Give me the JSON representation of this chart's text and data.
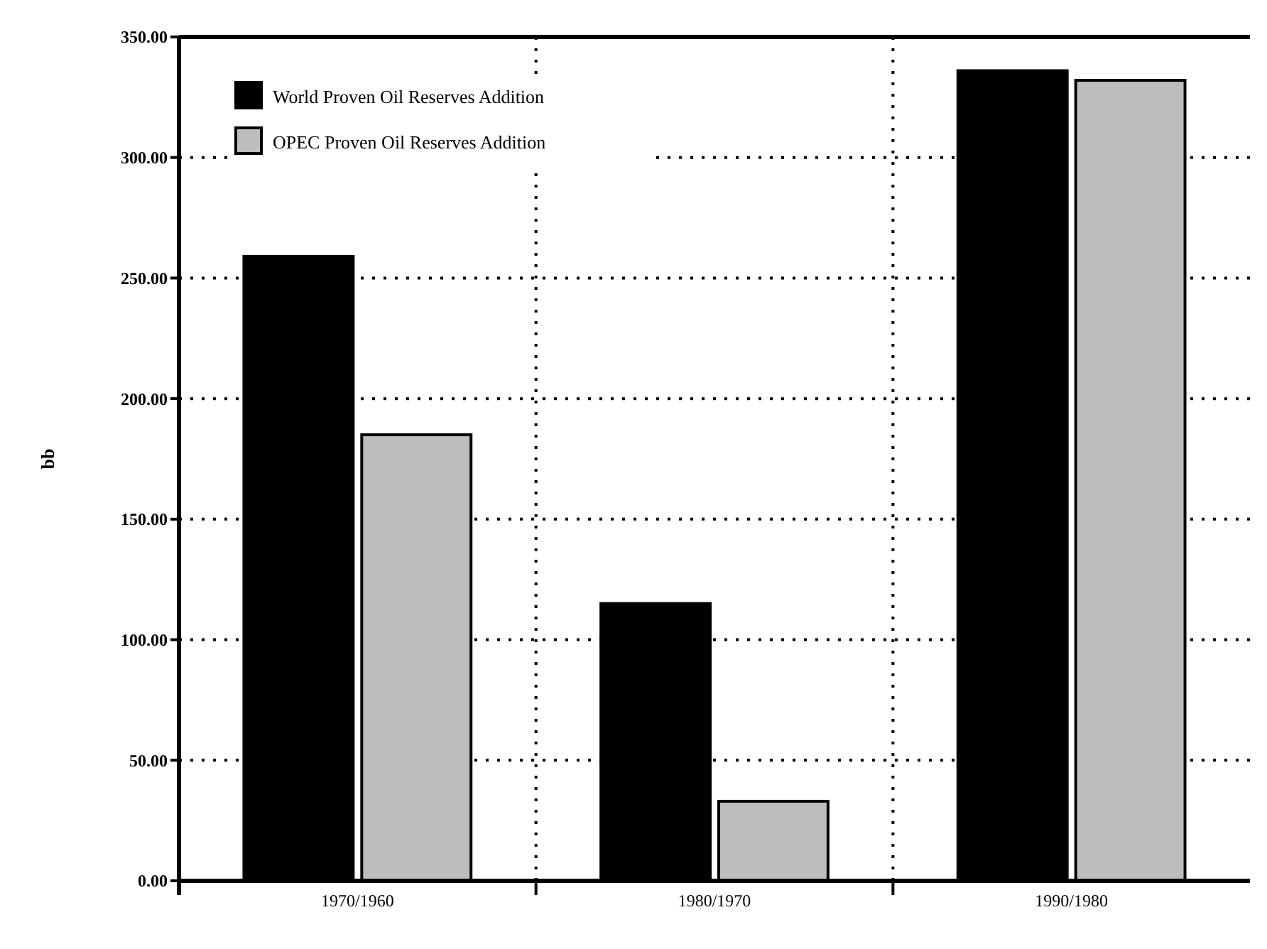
{
  "chart_data": {
    "type": "bar",
    "ylabel": "bb",
    "categories": [
      "1970/1960",
      "1980/1970",
      "1990/1980"
    ],
    "series": [
      {
        "name": "World Proven Oil Reserves Addition",
        "color": "#000000",
        "values": [
          259,
          115,
          336
        ]
      },
      {
        "name": "OPEC Proven Oil Reserves Addition",
        "color": "#bdbdbd",
        "values": [
          185,
          33,
          332
        ]
      }
    ],
    "ylim": [
      0,
      350
    ],
    "yticks": [
      {
        "value": 0,
        "label": "0.00"
      },
      {
        "value": 50,
        "label": "50.00"
      },
      {
        "value": 100,
        "label": "100.00"
      },
      {
        "value": 150,
        "label": "150.00"
      },
      {
        "value": 200,
        "label": "200.00"
      },
      {
        "value": 250,
        "label": "250.00"
      },
      {
        "value": 300,
        "label": "300.00"
      },
      {
        "value": 350,
        "label": "350.00"
      }
    ],
    "grid": true,
    "legend": "top left"
  }
}
